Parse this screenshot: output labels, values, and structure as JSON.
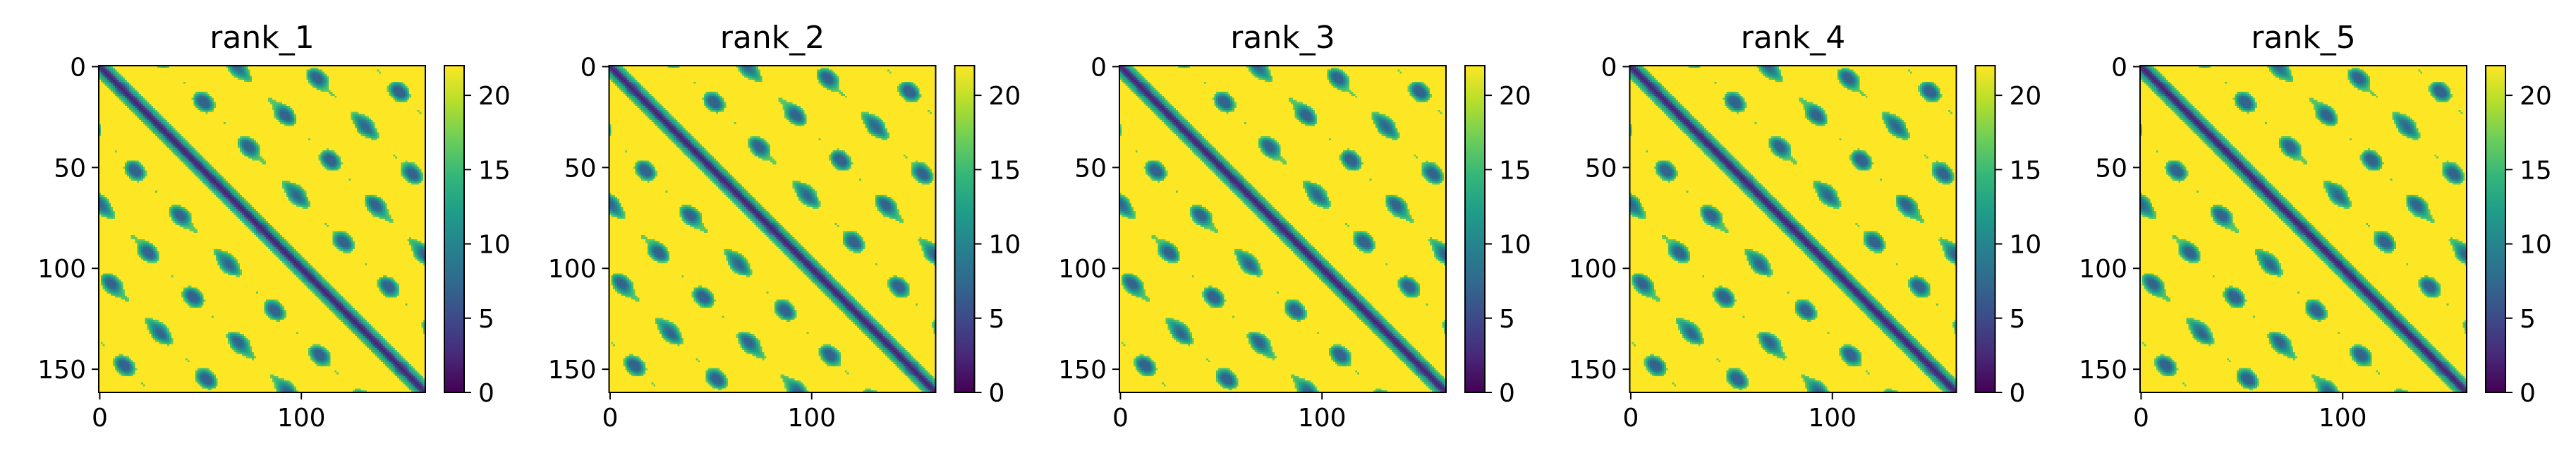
{
  "chart_data": [
    {
      "type": "heatmap",
      "title": "rank_1",
      "matrix_size": 162,
      "x_ticks": [
        0,
        100
      ],
      "y_ticks": [
        0,
        50,
        100,
        150
      ],
      "colorbar": {
        "range": [
          0,
          22
        ],
        "ticks": [
          0,
          5,
          10,
          15,
          20
        ]
      },
      "colormap": "viridis",
      "diagonal_value": 2
    },
    {
      "type": "heatmap",
      "title": "rank_2",
      "matrix_size": 162,
      "x_ticks": [
        0,
        100
      ],
      "y_ticks": [
        0,
        50,
        100,
        150
      ],
      "colorbar": {
        "range": [
          0,
          22
        ],
        "ticks": [
          0,
          5,
          10,
          15,
          20
        ]
      },
      "colormap": "viridis",
      "diagonal_value": 2
    },
    {
      "type": "heatmap",
      "title": "rank_3",
      "matrix_size": 162,
      "x_ticks": [
        0,
        100
      ],
      "y_ticks": [
        0,
        50,
        100,
        150
      ],
      "colorbar": {
        "range": [
          0,
          22
        ],
        "ticks": [
          0,
          5,
          10,
          15,
          20
        ]
      },
      "colormap": "viridis",
      "diagonal_value": 2
    },
    {
      "type": "heatmap",
      "title": "rank_4",
      "matrix_size": 162,
      "x_ticks": [
        0,
        100
      ],
      "y_ticks": [
        0,
        50,
        100,
        150
      ],
      "colorbar": {
        "range": [
          0,
          22
        ],
        "ticks": [
          0,
          5,
          10,
          15,
          20
        ]
      },
      "colormap": "viridis",
      "diagonal_value": 2
    },
    {
      "type": "heatmap",
      "title": "rank_5",
      "matrix_size": 162,
      "x_ticks": [
        0,
        100
      ],
      "y_ticks": [
        0,
        50,
        100,
        150
      ],
      "colorbar": {
        "range": [
          0,
          22
        ],
        "ticks": [
          0,
          5,
          10,
          15,
          20
        ]
      },
      "colormap": "viridis",
      "diagonal_value": 2
    }
  ],
  "colors": {
    "viridis": [
      "#440154",
      "#482878",
      "#3e4989",
      "#31688e",
      "#26828e",
      "#1f9e89",
      "#35b779",
      "#6ece58",
      "#b5de2b",
      "#fde725"
    ],
    "axis": "#000000",
    "background": "#ffffff"
  }
}
